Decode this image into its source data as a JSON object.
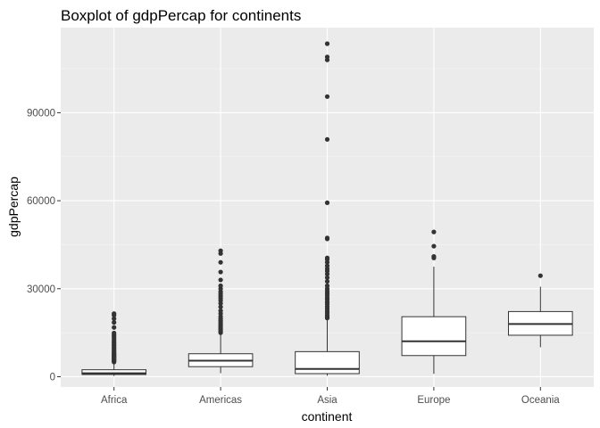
{
  "chart_data": {
    "type": "boxplot",
    "title": "Boxplot of gdpPercap for continents",
    "xlabel": "continent",
    "ylabel": "gdpPercap",
    "categories": [
      "Africa",
      "Americas",
      "Asia",
      "Europe",
      "Oceania"
    ],
    "y_ticks": [
      0,
      30000,
      60000,
      90000
    ],
    "y_tick_labels": [
      "0",
      "30000",
      "60000",
      "90000"
    ],
    "ylim": [
      -3500,
      119000
    ],
    "grid": true,
    "legend": "none",
    "boxes": [
      {
        "category": "Africa",
        "whisker_low": 241,
        "q1": 761,
        "median": 1192,
        "q3": 2377,
        "whisker_high": 4700,
        "outliers": [
          5000,
          5300,
          5600,
          5900,
          6200,
          6500,
          6800,
          7100,
          7400,
          7700,
          8000,
          8400,
          8800,
          9200,
          9600,
          10000,
          10600,
          11000,
          11500,
          12000,
          12600,
          13200,
          13800,
          14300,
          14900,
          16800,
          18500,
          19800,
          21000,
          21500
        ]
      },
      {
        "category": "Americas",
        "whisker_low": 1202,
        "q1": 3428,
        "median": 5466,
        "q3": 7830,
        "whisker_high": 14700,
        "outliers": [
          15000,
          15500,
          16000,
          16500,
          17000,
          17500,
          18000,
          18600,
          19200,
          19800,
          20500,
          21500,
          22500,
          23800,
          25000,
          26000,
          26800,
          27500,
          28200,
          29000,
          30000,
          31000,
          33000,
          35700,
          39000,
          42000,
          42951
        ]
      },
      {
        "category": "Asia",
        "whisker_low": 331,
        "q1": 1057,
        "median": 2647,
        "q3": 8549,
        "whisker_high": 19500,
        "outliers": [
          20000,
          20500,
          21000,
          21800,
          22500,
          23300,
          24000,
          24800,
          25500,
          26300,
          27000,
          27800,
          28500,
          29200,
          30000,
          31000,
          32500,
          33800,
          35000,
          36000,
          36800,
          37800,
          39000,
          40000,
          40500,
          47000,
          47300,
          59300,
          80900,
          95500,
          108000,
          109000,
          113523
        ]
      },
      {
        "category": "Europe",
        "whisker_low": 974,
        "q1": 7213,
        "median": 12082,
        "q3": 20461,
        "whisker_high": 37500,
        "outliers": [
          40500,
          41000,
          44500,
          49357
        ]
      },
      {
        "category": "Oceania",
        "whisker_low": 10040,
        "q1": 14142,
        "median": 17983,
        "q3": 22214,
        "whisker_high": 30700,
        "outliers": [
          34435
        ]
      }
    ]
  }
}
